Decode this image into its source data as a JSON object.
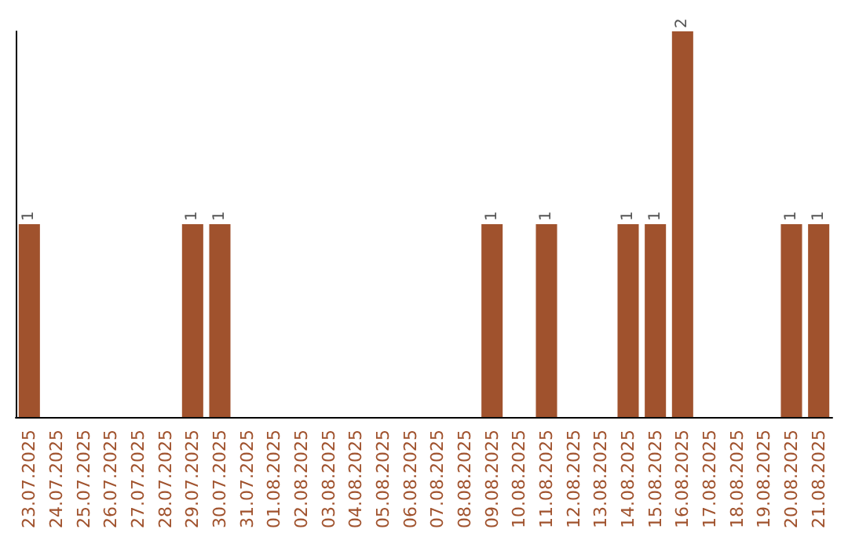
{
  "chart_data": {
    "type": "bar",
    "categories": [
      "23.07.2025",
      "24.07.2025",
      "25.07.2025",
      "26.07.2025",
      "27.07.2025",
      "28.07.2025",
      "29.07.2025",
      "30.07.2025",
      "31.07.2025",
      "01.08.2025",
      "02.08.2025",
      "03.08.2025",
      "04.08.2025",
      "05.08.2025",
      "06.08.2025",
      "07.08.2025",
      "08.08.2025",
      "09.08.2025",
      "10.08.2025",
      "11.08.2025",
      "12.08.2025",
      "13.08.2025",
      "14.08.2025",
      "15.08.2025",
      "16.08.2025",
      "17.08.2025",
      "18.08.2025",
      "19.08.2025",
      "20.08.2025",
      "21.08.2025"
    ],
    "values": [
      1,
      0,
      0,
      0,
      0,
      0,
      1,
      1,
      0,
      0,
      0,
      0,
      0,
      0,
      0,
      0,
      0,
      1,
      0,
      1,
      0,
      0,
      1,
      1,
      2,
      0,
      0,
      0,
      1,
      1
    ],
    "value_labels": [
      "1",
      null,
      null,
      null,
      null,
      null,
      "1",
      "1",
      null,
      null,
      null,
      null,
      null,
      null,
      null,
      null,
      null,
      "1",
      null,
      "1",
      null,
      null,
      "1",
      "1",
      "2",
      null,
      null,
      null,
      "1",
      "1"
    ],
    "color": "#a0522d",
    "grid": false,
    "tick_labels": "x"
  }
}
